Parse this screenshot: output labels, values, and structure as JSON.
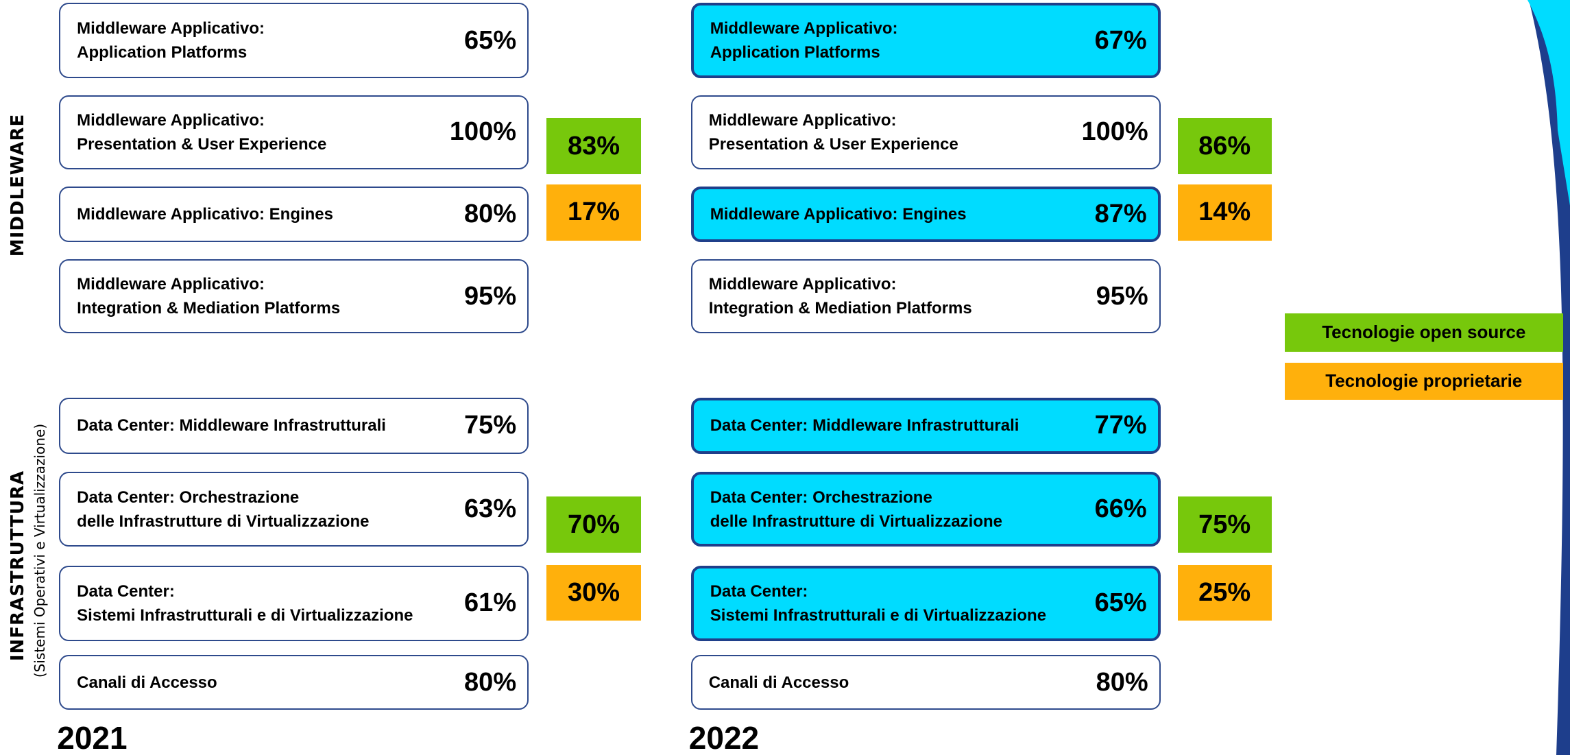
{
  "side_labels": {
    "middleware": "MIDDLEWARE",
    "infrastructure": "INFRASTRUTTURA",
    "infrastructure_note": "(Sistemi Operativi e Virtualizzazione)"
  },
  "panels": [
    {
      "year": "2021",
      "middleware": {
        "boxes": [
          {
            "lines": [
              "Middleware Applicativo:",
              "Application Platforms"
            ],
            "percent": "65%",
            "highlighted": false
          },
          {
            "lines": [
              "Middleware Applicativo:",
              "Presentation & User Experience"
            ],
            "percent": "100%",
            "highlighted": false
          },
          {
            "lines": [
              "Middleware Applicativo: Engines"
            ],
            "percent": "80%",
            "highlighted": false
          },
          {
            "lines": [
              "Middleware Applicativo:",
              "Integration & Mediation Platforms"
            ],
            "percent": "95%",
            "highlighted": false
          }
        ],
        "open_source": "83%",
        "proprietary": "17%"
      },
      "infrastructure": {
        "boxes": [
          {
            "lines": [
              "Data Center: Middleware Infrastrutturali"
            ],
            "percent": "75%",
            "highlighted": false
          },
          {
            "lines": [
              "Data Center: Orchestrazione",
              "delle Infrastrutture di Virtualizzazione"
            ],
            "percent": "63%",
            "highlighted": false
          },
          {
            "lines": [
              "Data Center:",
              "Sistemi Infrastrutturali e di Virtualizzazione"
            ],
            "percent": "61%",
            "highlighted": false
          },
          {
            "lines": [
              "Canali di Accesso"
            ],
            "percent": "80%",
            "highlighted": false
          }
        ],
        "open_source": "70%",
        "proprietary": "30%"
      }
    },
    {
      "year": "2022",
      "middleware": {
        "boxes": [
          {
            "lines": [
              "Middleware Applicativo:",
              "Application Platforms"
            ],
            "percent": "67%",
            "highlighted": true
          },
          {
            "lines": [
              "Middleware Applicativo:",
              "Presentation & User Experience"
            ],
            "percent": "100%",
            "highlighted": false
          },
          {
            "lines": [
              "Middleware Applicativo: Engines"
            ],
            "percent": "87%",
            "highlighted": true
          },
          {
            "lines": [
              "Middleware Applicativo:",
              "Integration & Mediation Platforms"
            ],
            "percent": "95%",
            "highlighted": false
          }
        ],
        "open_source": "86%",
        "proprietary": "14%"
      },
      "infrastructure": {
        "boxes": [
          {
            "lines": [
              "Data Center: Middleware Infrastrutturali"
            ],
            "percent": "77%",
            "highlighted": true
          },
          {
            "lines": [
              "Data Center: Orchestrazione",
              "delle Infrastrutture di Virtualizzazione"
            ],
            "percent": "66%",
            "highlighted": true
          },
          {
            "lines": [
              "Data Center:",
              "Sistemi Infrastrutturali e di Virtualizzazione"
            ],
            "percent": "65%",
            "highlighted": true
          },
          {
            "lines": [
              "Canali di Accesso"
            ],
            "percent": "80%",
            "highlighted": false
          }
        ],
        "open_source": "75%",
        "proprietary": "25%"
      }
    }
  ],
  "legend": {
    "open_source": "Tecnologie open source",
    "proprietary": "Tecnologie proprietarie"
  }
}
